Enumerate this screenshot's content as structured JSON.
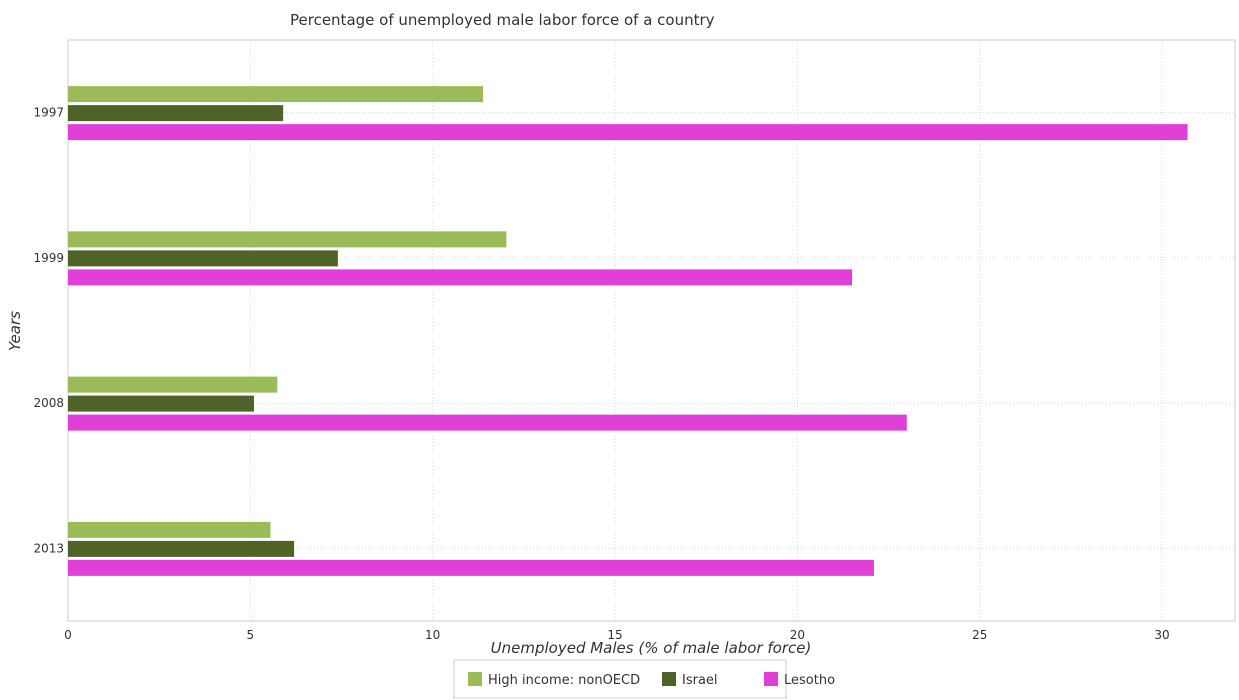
{
  "chart_data": {
    "type": "bar",
    "orientation": "horizontal",
    "title": "Percentage of unemployed male labor force of a country",
    "xlabel": "Unemployed Males (% of male labor force)",
    "ylabel": "Years",
    "categories": [
      "1997",
      "1999",
      "2008",
      "2013"
    ],
    "series": [
      {
        "name": "High income: nonOECD",
        "color": "#9bbb59",
        "values": [
          11.38,
          12.02,
          5.74,
          5.55
        ]
      },
      {
        "name": "Israel",
        "color": "#4f6228",
        "values": [
          5.9,
          7.4,
          5.1,
          6.2
        ]
      },
      {
        "name": "Lesotho",
        "color": "#e040d8",
        "values": [
          30.7,
          21.5,
          23.0,
          22.1
        ]
      }
    ],
    "xlim": [
      0,
      32
    ],
    "xticks": [
      0,
      5,
      10,
      15,
      20,
      25,
      30
    ],
    "grid": true,
    "legend": "bottom-center"
  }
}
